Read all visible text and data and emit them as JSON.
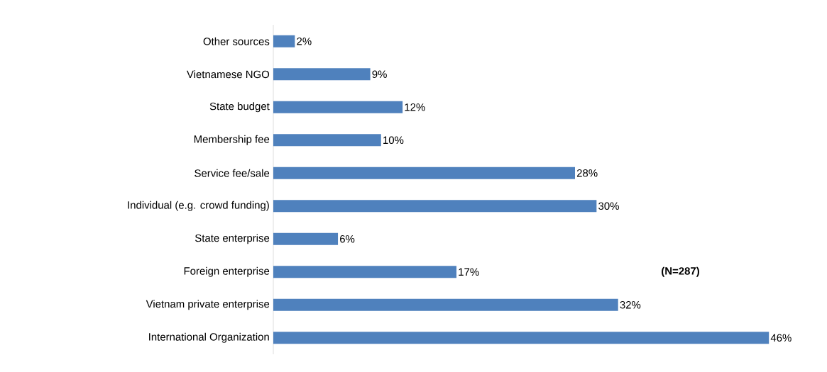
{
  "chart_data": {
    "type": "bar",
    "orientation": "horizontal",
    "categories": [
      "Other sources",
      "Vietnamese NGO",
      "State budget",
      "Membership fee",
      "Service fee/sale",
      "Individual (e.g. crowd funding)",
      "State enterprise",
      "Foreign enterprise",
      "Vietnam private enterprise",
      "International Organization"
    ],
    "values": [
      2,
      9,
      12,
      10,
      28,
      30,
      6,
      17,
      32,
      46
    ],
    "value_labels": [
      "2%",
      "9%",
      "12%",
      "10%",
      "28%",
      "30%",
      "6%",
      "17%",
      "32%",
      "46%"
    ],
    "color": "#4f81bd",
    "annotations": [
      "(N=287)"
    ]
  }
}
